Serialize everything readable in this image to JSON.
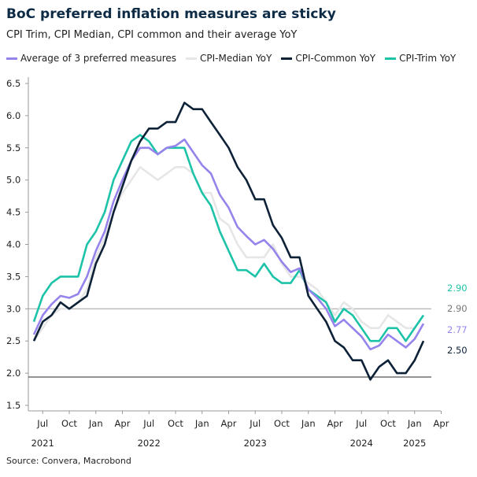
{
  "chart_data": {
    "type": "line",
    "title": "BoC preferred inflation measures are sticky",
    "subtitle": "CPI Trim, CPI Median, CPI common and their average YoY",
    "source": "Source: Convera, Macrobond",
    "x_start": "2021-06",
    "x_end": "2025-02",
    "frequency": "monthly",
    "ylim": [
      1.5,
      6.5
    ],
    "y_ticks": [
      "1.5",
      "2.0",
      "2.5",
      "3.0",
      "3.5",
      "4.0",
      "4.5",
      "5.0",
      "5.5",
      "6.0",
      "6.5"
    ],
    "x_ticks": [
      {
        "month": "2021-07",
        "label": "Jul"
      },
      {
        "month": "2021-10",
        "label": "Oct"
      },
      {
        "month": "2022-01",
        "label": "Jan"
      },
      {
        "month": "2022-04",
        "label": "Apr"
      },
      {
        "month": "2022-07",
        "label": "Jul"
      },
      {
        "month": "2022-10",
        "label": "Oct"
      },
      {
        "month": "2023-01",
        "label": "Jan"
      },
      {
        "month": "2023-04",
        "label": "Apr"
      },
      {
        "month": "2023-07",
        "label": "Jul"
      },
      {
        "month": "2023-10",
        "label": "Oct"
      },
      {
        "month": "2024-01",
        "label": "Jan"
      },
      {
        "month": "2024-04",
        "label": "Apr"
      },
      {
        "month": "2024-07",
        "label": "Jul"
      },
      {
        "month": "2024-10",
        "label": "Oct"
      },
      {
        "month": "2025-01",
        "label": "Jan"
      },
      {
        "month": "2025-04",
        "label": "Apr"
      }
    ],
    "year_labels": [
      {
        "month": "2021-07",
        "label": "2021"
      },
      {
        "month": "2022-07",
        "label": "2022"
      },
      {
        "month": "2023-07",
        "label": "2023"
      },
      {
        "month": "2024-07",
        "label": "2024"
      },
      {
        "month": "2025-01",
        "label": "2025"
      }
    ],
    "reference_lines": [
      3.0,
      1.94
    ],
    "grid": false,
    "legend_position": "top",
    "series": [
      {
        "name": "Average of 3 preferred measures",
        "color": "#9683ec",
        "end_label": "2.77",
        "values": [
          2.6,
          2.9,
          3.07,
          3.2,
          3.17,
          3.23,
          3.5,
          3.9,
          4.2,
          4.67,
          5.0,
          5.3,
          5.5,
          5.5,
          5.4,
          5.5,
          5.53,
          5.63,
          5.43,
          5.23,
          5.1,
          4.77,
          4.57,
          4.27,
          4.13,
          4.0,
          4.07,
          3.93,
          3.73,
          3.57,
          3.63,
          3.3,
          3.17,
          3.0,
          2.73,
          2.83,
          2.7,
          2.57,
          2.37,
          2.43,
          2.6,
          2.5,
          2.4,
          2.53,
          2.77
        ]
      },
      {
        "name": "CPI-Median YoY",
        "color": "#e6e6e6",
        "end_label": "2.90",
        "label_color": "#777777",
        "values": [
          2.5,
          2.7,
          2.9,
          3.0,
          3.0,
          3.1,
          3.3,
          3.8,
          4.1,
          4.5,
          4.8,
          5.0,
          5.2,
          5.1,
          5.0,
          5.1,
          5.2,
          5.2,
          5.1,
          4.8,
          4.8,
          4.4,
          4.3,
          4.0,
          3.8,
          3.8,
          3.8,
          4.0,
          3.7,
          3.5,
          3.5,
          3.4,
          3.3,
          3.1,
          2.9,
          3.1,
          3.0,
          2.8,
          2.7,
          2.7,
          2.9,
          2.8,
          2.7,
          2.7,
          2.9
        ]
      },
      {
        "name": "CPI-Common YoY",
        "color": "#0d2137",
        "end_label": "2.50",
        "values": [
          2.5,
          2.8,
          2.9,
          3.1,
          3.0,
          3.1,
          3.2,
          3.7,
          4.0,
          4.5,
          4.9,
          5.3,
          5.6,
          5.8,
          5.8,
          5.9,
          5.9,
          6.2,
          6.1,
          6.1,
          5.9,
          5.7,
          5.5,
          5.2,
          5.0,
          4.7,
          4.7,
          4.3,
          4.1,
          3.8,
          3.8,
          3.2,
          3.0,
          2.8,
          2.5,
          2.4,
          2.2,
          2.2,
          1.9,
          2.1,
          2.2,
          2.0,
          2.0,
          2.2,
          2.5
        ]
      },
      {
        "name": "CPI-Trim YoY",
        "color": "#1dc3a8",
        "end_label": "2.90",
        "values": [
          2.8,
          3.2,
          3.4,
          3.5,
          3.5,
          3.5,
          4.0,
          4.2,
          4.5,
          5.0,
          5.3,
          5.6,
          5.7,
          5.6,
          5.4,
          5.5,
          5.5,
          5.5,
          5.1,
          4.8,
          4.6,
          4.2,
          3.9,
          3.6,
          3.6,
          3.5,
          3.7,
          3.5,
          3.4,
          3.4,
          3.6,
          3.3,
          3.2,
          3.1,
          2.8,
          3.0,
          2.9,
          2.7,
          2.5,
          2.5,
          2.7,
          2.7,
          2.5,
          2.7,
          2.9
        ]
      }
    ]
  }
}
